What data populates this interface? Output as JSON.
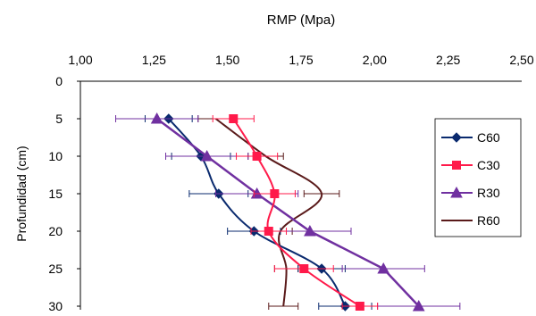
{
  "chart_data": {
    "type": "line",
    "title": "RMP (Mpa)",
    "xlabel": "",
    "ylabel": "Profundidad (cm)",
    "xlim": [
      1.0,
      2.5
    ],
    "ylim": [
      0,
      30
    ],
    "y_inverted": true,
    "x_axis_position": "top",
    "x_ticks": [
      1.0,
      1.25,
      1.5,
      1.75,
      2.0,
      2.25,
      2.5
    ],
    "x_tick_labels": [
      "1,00",
      "1,25",
      "1,50",
      "1,75",
      "2,00",
      "2,25",
      "2,50"
    ],
    "y_ticks": [
      0,
      5,
      10,
      15,
      20,
      25,
      30
    ],
    "y_tick_labels": [
      "0",
      "5",
      "10",
      "15",
      "20",
      "25",
      "30"
    ],
    "grid": false,
    "legend_position": "right",
    "series": [
      {
        "name": "C60",
        "color": "#0a2a6e",
        "marker": "diamond",
        "smooth": true,
        "points": [
          {
            "x": 1.3,
            "y": 5,
            "err": 0.08
          },
          {
            "x": 1.41,
            "y": 10,
            "err": 0.1
          },
          {
            "x": 1.47,
            "y": 15,
            "err": 0.1
          },
          {
            "x": 1.59,
            "y": 20,
            "err": 0.09
          },
          {
            "x": 1.82,
            "y": 25,
            "err": 0.08
          },
          {
            "x": 1.9,
            "y": 30,
            "err": 0.09
          }
        ]
      },
      {
        "name": "C30",
        "color": "#ff1a4a",
        "marker": "square",
        "smooth": true,
        "points": [
          {
            "x": 1.52,
            "y": 5,
            "err": 0.07
          },
          {
            "x": 1.6,
            "y": 10,
            "err": 0.07
          },
          {
            "x": 1.66,
            "y": 15,
            "err": 0.07
          },
          {
            "x": 1.64,
            "y": 20,
            "err": 0.06
          },
          {
            "x": 1.76,
            "y": 25,
            "err": 0.1
          },
          {
            "x": 1.95,
            "y": 30,
            "err": 0.06
          }
        ]
      },
      {
        "name": "R30",
        "color": "#7030a0",
        "marker": "triangle",
        "smooth": false,
        "points": [
          {
            "x": 1.26,
            "y": 5,
            "err": 0.14
          },
          {
            "x": 1.43,
            "y": 10,
            "err": 0.14
          },
          {
            "x": 1.6,
            "y": 15,
            "err": 0.14
          },
          {
            "x": 1.78,
            "y": 20,
            "err": 0.14
          },
          {
            "x": 2.03,
            "y": 25,
            "err": 0.14
          },
          {
            "x": 2.15,
            "y": 30,
            "err": 0.14
          }
        ]
      },
      {
        "name": "R60",
        "color": "#5a1a1a",
        "marker": "none",
        "smooth": true,
        "points": [
          {
            "x": 1.46,
            "y": 5,
            "err": 0.06
          },
          {
            "x": 1.63,
            "y": 10,
            "err": 0.06
          },
          {
            "x": 1.82,
            "y": 15,
            "err": 0.06
          },
          {
            "x": 1.68,
            "y": 20,
            "err": 0.04
          },
          {
            "x": 1.7,
            "y": 25,
            "err": 0.04
          },
          {
            "x": 1.69,
            "y": 30,
            "err": 0.05
          }
        ]
      }
    ]
  }
}
